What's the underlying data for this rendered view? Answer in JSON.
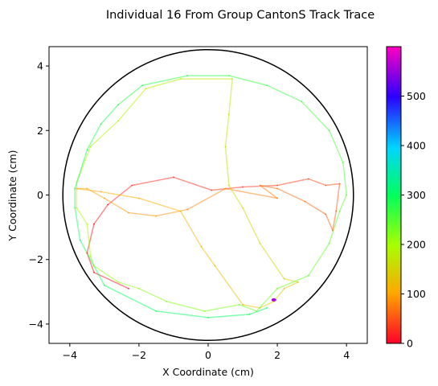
{
  "chart_data": {
    "type": "line",
    "title": "Individual 16 From Group CantonS Track Trace",
    "xlabel": "X Coordinate (cm)",
    "ylabel": "Y Coordinate (cm)",
    "xlim": [
      -4.6,
      4.6
    ],
    "ylim": [
      -4.6,
      4.6
    ],
    "xticks": [
      -4,
      -2,
      0,
      2,
      4
    ],
    "yticks": [
      -4,
      -2,
      0,
      2,
      4
    ],
    "grid": false,
    "arena_circle": {
      "center": [
        0,
        0
      ],
      "radius": 4.2,
      "color": "#000000"
    },
    "colorbar": {
      "colormap": "gist_rainbow",
      "range": [
        0,
        600
      ],
      "ticks": [
        0,
        100,
        200,
        300,
        400,
        500
      ]
    },
    "series": [
      {
        "color_by": "time",
        "points": [
          {
            "x": -2.3,
            "y": -2.9,
            "t": 0
          },
          {
            "x": -3.3,
            "y": -2.4,
            "t": 4
          },
          {
            "x": -3.5,
            "y": -1.8,
            "t": 8
          },
          {
            "x": -3.3,
            "y": -0.9,
            "t": 12
          },
          {
            "x": -2.9,
            "y": -0.3,
            "t": 16
          },
          {
            "x": -2.2,
            "y": 0.3,
            "t": 20
          },
          {
            "x": -1.0,
            "y": 0.55,
            "t": 24
          },
          {
            "x": 0.1,
            "y": 0.15,
            "t": 28
          },
          {
            "x": 1.0,
            "y": 0.25,
            "t": 32
          },
          {
            "x": 2.0,
            "y": 0.3,
            "t": 36
          },
          {
            "x": 2.9,
            "y": 0.5,
            "t": 40
          },
          {
            "x": 3.4,
            "y": 0.3,
            "t": 44
          },
          {
            "x": 3.8,
            "y": 0.35,
            "t": 48
          },
          {
            "x": 3.7,
            "y": -0.5,
            "t": 52
          },
          {
            "x": 3.6,
            "y": -1.1,
            "t": 56
          },
          {
            "x": 3.4,
            "y": -0.6,
            "t": 60
          },
          {
            "x": 2.8,
            "y": -0.2,
            "t": 64
          },
          {
            "x": 2.0,
            "y": 0.2,
            "t": 68
          },
          {
            "x": 1.5,
            "y": 0.3,
            "t": 72
          },
          {
            "x": 2.0,
            "y": -0.1,
            "t": 76
          },
          {
            "x": 0.5,
            "y": 0.2,
            "t": 80
          },
          {
            "x": -0.6,
            "y": -0.45,
            "t": 84
          },
          {
            "x": -1.5,
            "y": -0.65,
            "t": 88
          },
          {
            "x": -2.3,
            "y": -0.55,
            "t": 92
          },
          {
            "x": -3.0,
            "y": -0.1,
            "t": 96
          },
          {
            "x": -3.5,
            "y": 0.2,
            "t": 100
          },
          {
            "x": -3.8,
            "y": 0.2,
            "t": 104
          },
          {
            "x": -3.1,
            "y": 0.1,
            "t": 108
          },
          {
            "x": -2.0,
            "y": -0.1,
            "t": 112
          },
          {
            "x": -0.8,
            "y": -0.5,
            "t": 116
          },
          {
            "x": -0.2,
            "y": -1.6,
            "t": 120
          },
          {
            "x": 0.2,
            "y": -2.2,
            "t": 124
          },
          {
            "x": 1.0,
            "y": -3.4,
            "t": 128
          },
          {
            "x": 1.5,
            "y": -3.5,
            "t": 132
          },
          {
            "x": 1.9,
            "y": -3.3,
            "t": 136
          },
          {
            "x": 2.2,
            "y": -2.9,
            "t": 140
          },
          {
            "x": 2.6,
            "y": -2.7,
            "t": 144
          },
          {
            "x": 2.2,
            "y": -2.6,
            "t": 148
          },
          {
            "x": 1.5,
            "y": -1.5,
            "t": 152
          },
          {
            "x": 1.0,
            "y": -0.4,
            "t": 156
          },
          {
            "x": 0.6,
            "y": 0.3,
            "t": 160
          },
          {
            "x": 0.5,
            "y": 1.5,
            "t": 164
          },
          {
            "x": 0.6,
            "y": 2.5,
            "t": 168
          },
          {
            "x": 0.7,
            "y": 3.6,
            "t": 172
          },
          {
            "x": -0.8,
            "y": 3.6,
            "t": 176
          },
          {
            "x": -1.8,
            "y": 3.3,
            "t": 180
          },
          {
            "x": -2.6,
            "y": 2.3,
            "t": 184
          },
          {
            "x": -3.4,
            "y": 1.5,
            "t": 188
          },
          {
            "x": -3.8,
            "y": 0.4,
            "t": 192
          },
          {
            "x": -3.8,
            "y": -0.4,
            "t": 196
          },
          {
            "x": -3.5,
            "y": -0.9,
            "t": 200
          },
          {
            "x": -3.4,
            "y": -1.9,
            "t": 204
          },
          {
            "x": -3.3,
            "y": -2.2,
            "t": 208
          },
          {
            "x": -2.6,
            "y": -2.7,
            "t": 212
          },
          {
            "x": -2.0,
            "y": -2.9,
            "t": 216
          },
          {
            "x": -1.2,
            "y": -3.3,
            "t": 220
          },
          {
            "x": -0.1,
            "y": -3.6,
            "t": 224
          },
          {
            "x": 0.9,
            "y": -3.4,
            "t": 228
          },
          {
            "x": 1.4,
            "y": -3.6,
            "t": 232
          },
          {
            "x": 2.0,
            "y": -2.9,
            "t": 236
          },
          {
            "x": 2.9,
            "y": -2.5,
            "t": 240
          },
          {
            "x": 3.5,
            "y": -1.5,
            "t": 244
          },
          {
            "x": 3.8,
            "y": -0.5,
            "t": 248
          },
          {
            "x": 4.0,
            "y": 0.0,
            "t": 252
          },
          {
            "x": 3.9,
            "y": 1.0,
            "t": 256
          },
          {
            "x": 3.5,
            "y": 2.0,
            "t": 260
          },
          {
            "x": 2.7,
            "y": 2.9,
            "t": 264
          },
          {
            "x": 1.7,
            "y": 3.4,
            "t": 268
          },
          {
            "x": 0.6,
            "y": 3.7,
            "t": 272
          },
          {
            "x": -0.6,
            "y": 3.7,
            "t": 276
          },
          {
            "x": -1.9,
            "y": 3.4,
            "t": 280
          },
          {
            "x": -2.6,
            "y": 2.8,
            "t": 284
          },
          {
            "x": -3.1,
            "y": 2.2,
            "t": 286
          },
          {
            "x": -3.5,
            "y": 1.4,
            "t": 288
          },
          {
            "x": -3.85,
            "y": 0.2,
            "t": 290
          },
          {
            "x": -3.85,
            "y": -0.4,
            "t": 292
          },
          {
            "x": -3.7,
            "y": -1.4,
            "t": 294
          },
          {
            "x": -3.0,
            "y": -2.8,
            "t": 296
          },
          {
            "x": -1.5,
            "y": -3.6,
            "t": 298
          },
          {
            "x": 0.0,
            "y": -3.8,
            "t": 300
          },
          {
            "x": 1.2,
            "y": -3.7,
            "t": 302
          },
          {
            "x": 1.7,
            "y": -3.5,
            "t": 304
          }
        ],
        "final_marker": {
          "x": 1.9,
          "y": -3.25,
          "t": 560
        }
      }
    ]
  }
}
